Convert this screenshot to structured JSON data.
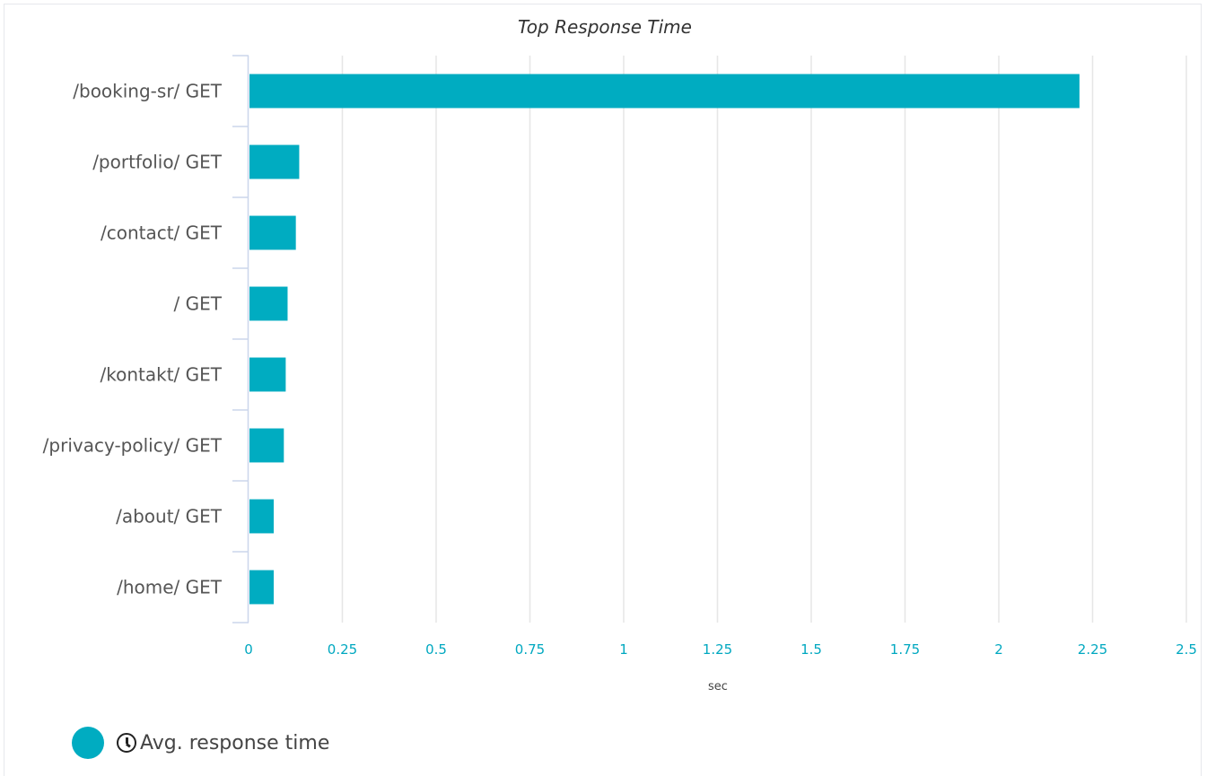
{
  "chart_data": {
    "type": "bar",
    "orientation": "horizontal",
    "title": "Top Response Time",
    "xlabel": "sec",
    "ylabel": "",
    "categories": [
      "/booking-sr/ GET",
      "/portfolio/ GET",
      "/contact/ GET",
      "/ GET",
      "/kontakt/ GET",
      "/privacy-policy/ GET",
      "/about/ GET",
      "/home/ GET"
    ],
    "series": [
      {
        "name": "Avg. response time",
        "color": "#00acc1",
        "values": [
          2.215,
          0.135,
          0.126,
          0.104,
          0.099,
          0.094,
          0.067,
          0.067
        ]
      }
    ],
    "xlim": [
      0,
      2.5
    ],
    "xticks": [
      "0",
      "0.25",
      "0.5",
      "0.75",
      "1",
      "1.25",
      "1.5",
      "1.75",
      "2",
      "2.25",
      "2.5"
    ],
    "xtick_values": [
      0,
      0.25,
      0.5,
      0.75,
      1,
      1.25,
      1.5,
      1.75,
      2,
      2.25,
      2.5
    ],
    "grid": true,
    "legend": "bottom-left",
    "tick_color": "#00a8c0",
    "grid_color": "#e6e6e6",
    "axis_color": "#ccd6eb"
  },
  "legend": {
    "label": "Avg. response time",
    "icon": "clock-icon"
  }
}
